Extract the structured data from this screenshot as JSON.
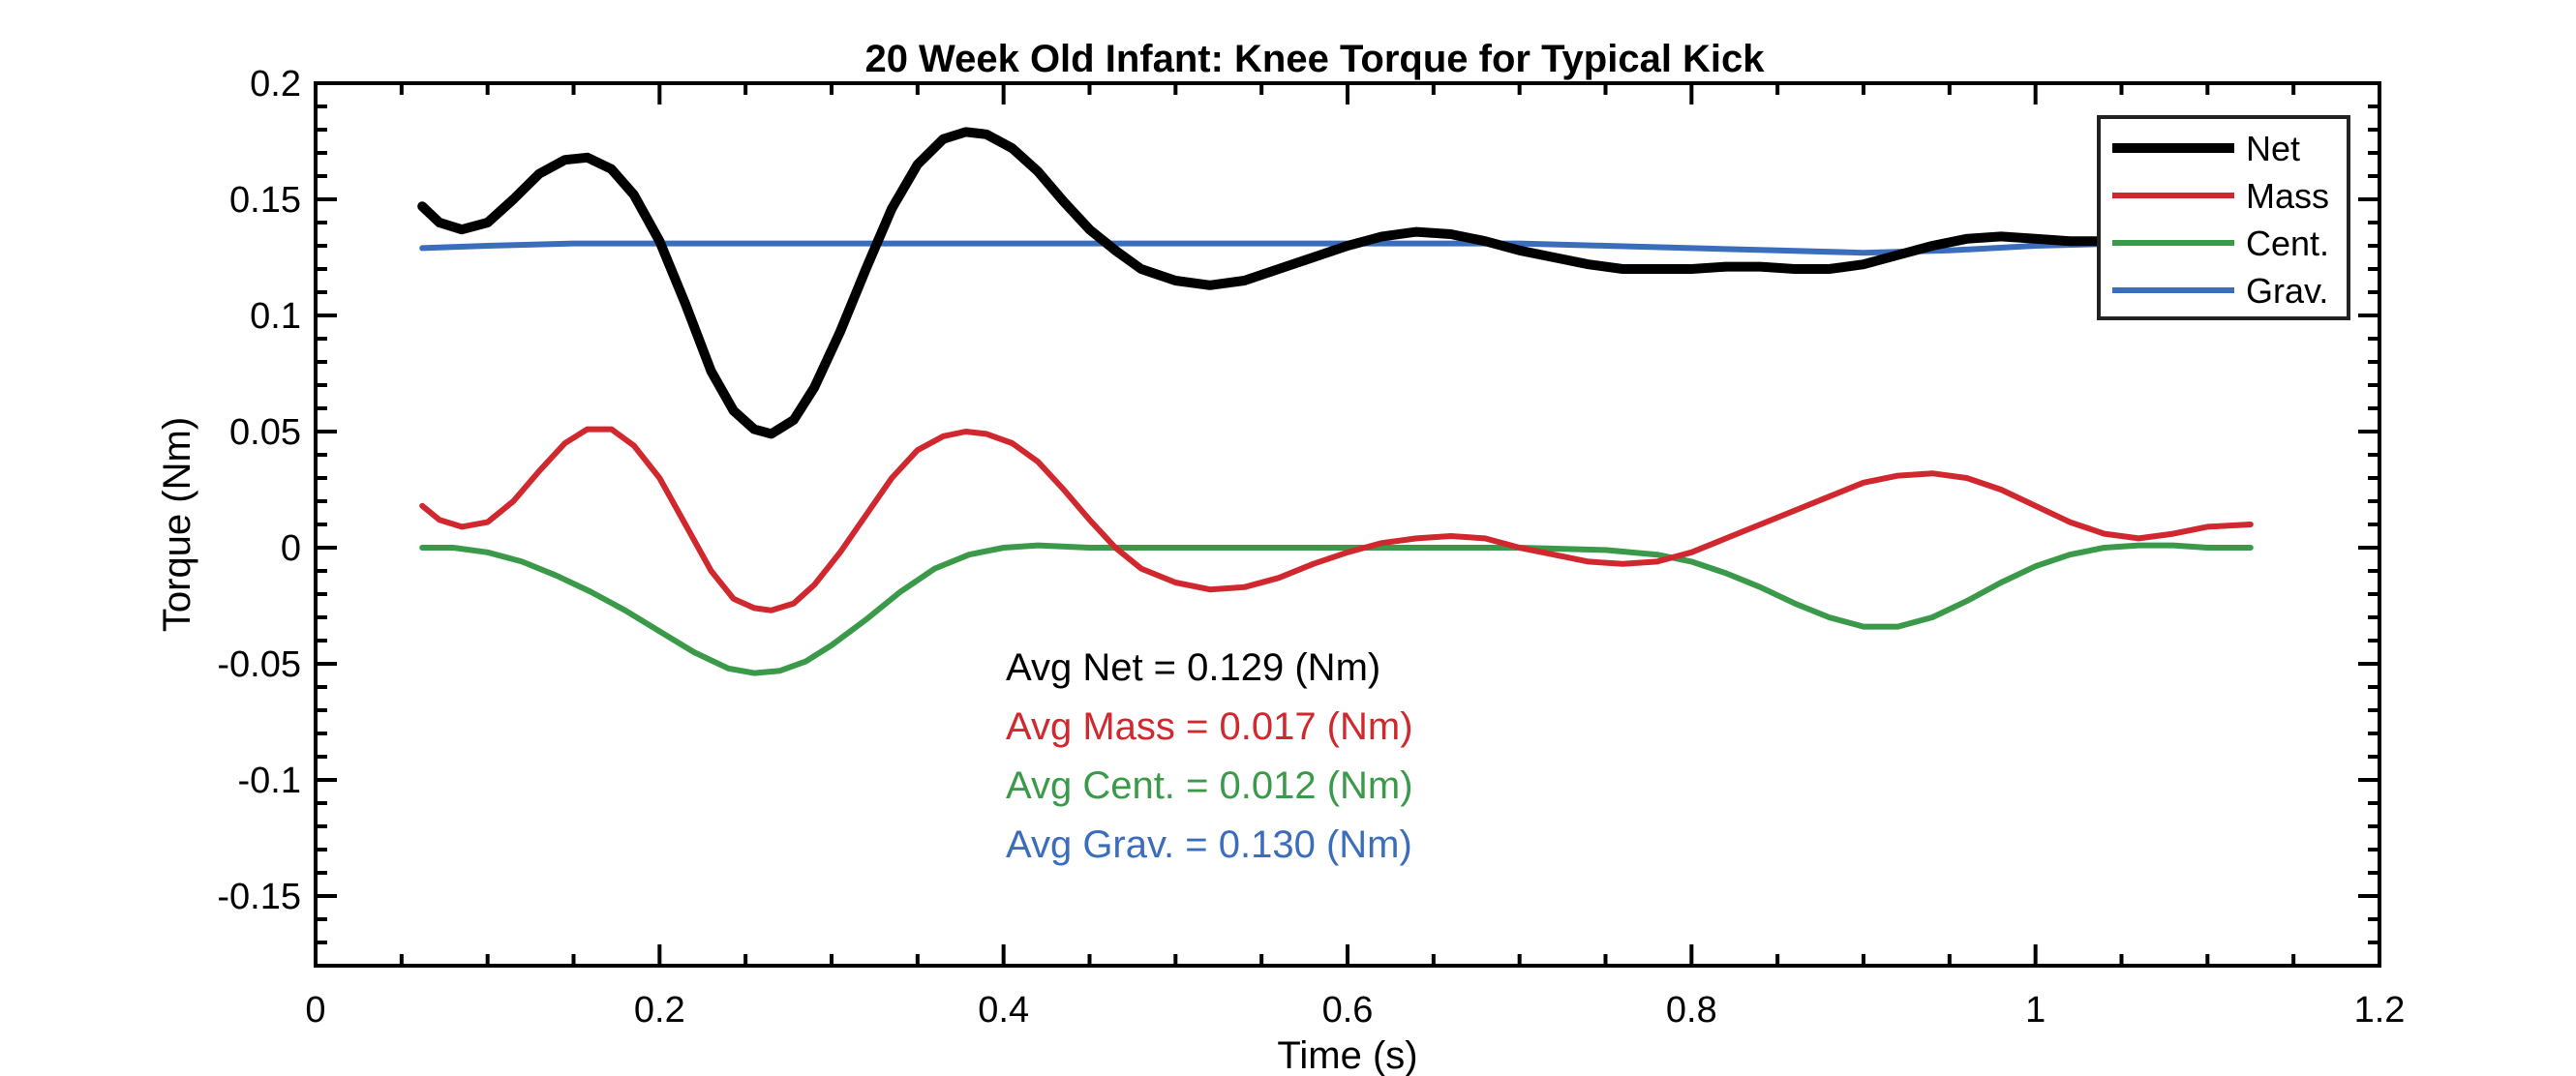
{
  "chart_data": {
    "type": "line",
    "title": "20 Week Old Infant: Knee Torque for Typical Kick",
    "xlabel": "Time (s)",
    "ylabel": "Torque (Nm)",
    "xlim": [
      0,
      1.2
    ],
    "ylim": [
      -0.18,
      0.2
    ],
    "xticks": [
      "0",
      "0.2",
      "0.4",
      "0.6",
      "0.8",
      "1",
      "1.2"
    ],
    "xtick_values": [
      0,
      0.2,
      0.4,
      0.6,
      0.8,
      1.0,
      1.2
    ],
    "yticks": [
      "-0.15",
      "-0.1",
      "-0.05",
      "0",
      "0.05",
      "0.1",
      "0.15",
      "0.2"
    ],
    "ytick_values": [
      -0.15,
      -0.1,
      -0.05,
      0,
      0.05,
      0.1,
      0.15,
      0.2
    ],
    "grid": false,
    "legend_position": "top-right",
    "series": [
      {
        "name": "Net",
        "color": "#000000",
        "x": [
          0.062,
          0.072,
          0.085,
          0.1,
          0.115,
          0.13,
          0.145,
          0.158,
          0.172,
          0.185,
          0.2,
          0.215,
          0.23,
          0.243,
          0.255,
          0.265,
          0.278,
          0.29,
          0.305,
          0.32,
          0.335,
          0.35,
          0.365,
          0.378,
          0.39,
          0.405,
          0.42,
          0.435,
          0.45,
          0.465,
          0.48,
          0.5,
          0.52,
          0.54,
          0.56,
          0.58,
          0.6,
          0.62,
          0.64,
          0.66,
          0.68,
          0.7,
          0.72,
          0.74,
          0.76,
          0.78,
          0.8,
          0.82,
          0.84,
          0.86,
          0.88,
          0.9,
          0.92,
          0.94,
          0.96,
          0.98,
          1.0,
          1.02,
          1.04,
          1.06,
          1.08,
          1.1,
          1.125
        ],
        "y": [
          0.147,
          0.14,
          0.137,
          0.14,
          0.15,
          0.161,
          0.167,
          0.168,
          0.163,
          0.152,
          0.132,
          0.105,
          0.076,
          0.059,
          0.051,
          0.049,
          0.055,
          0.069,
          0.093,
          0.12,
          0.146,
          0.165,
          0.176,
          0.179,
          0.178,
          0.172,
          0.162,
          0.149,
          0.137,
          0.128,
          0.12,
          0.115,
          0.113,
          0.115,
          0.12,
          0.125,
          0.13,
          0.134,
          0.136,
          0.135,
          0.132,
          0.128,
          0.125,
          0.122,
          0.12,
          0.12,
          0.12,
          0.121,
          0.121,
          0.12,
          0.12,
          0.122,
          0.126,
          0.13,
          0.133,
          0.134,
          0.133,
          0.132,
          0.132,
          0.132,
          0.132,
          0.132,
          0.132
        ]
      },
      {
        "name": "Mass",
        "color": "#d0282e",
        "x": [
          0.062,
          0.072,
          0.085,
          0.1,
          0.115,
          0.13,
          0.145,
          0.158,
          0.172,
          0.185,
          0.2,
          0.215,
          0.23,
          0.243,
          0.255,
          0.265,
          0.278,
          0.29,
          0.305,
          0.32,
          0.335,
          0.35,
          0.365,
          0.378,
          0.39,
          0.405,
          0.42,
          0.435,
          0.45,
          0.465,
          0.48,
          0.5,
          0.52,
          0.54,
          0.56,
          0.58,
          0.6,
          0.62,
          0.64,
          0.66,
          0.68,
          0.7,
          0.72,
          0.74,
          0.76,
          0.78,
          0.8,
          0.82,
          0.84,
          0.86,
          0.88,
          0.9,
          0.92,
          0.94,
          0.96,
          0.98,
          1.0,
          1.02,
          1.04,
          1.06,
          1.08,
          1.1,
          1.125
        ],
        "y": [
          0.018,
          0.012,
          0.009,
          0.011,
          0.02,
          0.033,
          0.045,
          0.051,
          0.051,
          0.044,
          0.03,
          0.01,
          -0.01,
          -0.022,
          -0.026,
          -0.027,
          -0.024,
          -0.016,
          -0.002,
          0.014,
          0.03,
          0.042,
          0.048,
          0.05,
          0.049,
          0.045,
          0.037,
          0.025,
          0.012,
          0.0,
          -0.009,
          -0.015,
          -0.018,
          -0.017,
          -0.013,
          -0.007,
          -0.002,
          0.002,
          0.004,
          0.005,
          0.004,
          0.0,
          -0.003,
          -0.006,
          -0.007,
          -0.006,
          -0.002,
          0.004,
          0.01,
          0.016,
          0.022,
          0.028,
          0.031,
          0.032,
          0.03,
          0.025,
          0.018,
          0.011,
          0.006,
          0.004,
          0.006,
          0.009,
          0.01
        ]
      },
      {
        "name": "Cent.",
        "color": "#3b9a4a",
        "x": [
          0.062,
          0.08,
          0.1,
          0.12,
          0.14,
          0.16,
          0.18,
          0.2,
          0.22,
          0.24,
          0.255,
          0.27,
          0.285,
          0.3,
          0.32,
          0.34,
          0.36,
          0.38,
          0.4,
          0.42,
          0.45,
          0.5,
          0.55,
          0.6,
          0.65,
          0.7,
          0.75,
          0.78,
          0.8,
          0.82,
          0.84,
          0.86,
          0.88,
          0.9,
          0.92,
          0.94,
          0.96,
          0.98,
          1.0,
          1.02,
          1.04,
          1.06,
          1.08,
          1.1,
          1.125
        ],
        "y": [
          0.0,
          0.0,
          -0.002,
          -0.006,
          -0.012,
          -0.019,
          -0.027,
          -0.036,
          -0.045,
          -0.052,
          -0.054,
          -0.053,
          -0.049,
          -0.042,
          -0.031,
          -0.019,
          -0.009,
          -0.003,
          0.0,
          0.001,
          0.0,
          0.0,
          0.0,
          0.0,
          0.0,
          0.0,
          -0.001,
          -0.003,
          -0.006,
          -0.011,
          -0.017,
          -0.024,
          -0.03,
          -0.034,
          -0.034,
          -0.03,
          -0.023,
          -0.015,
          -0.008,
          -0.003,
          0.0,
          0.001,
          0.001,
          0.0,
          0.0
        ]
      },
      {
        "name": "Grav.",
        "color": "#3b6dbd",
        "x": [
          0.062,
          0.1,
          0.15,
          0.2,
          0.25,
          0.3,
          0.35,
          0.4,
          0.45,
          0.5,
          0.55,
          0.6,
          0.65,
          0.7,
          0.75,
          0.8,
          0.85,
          0.9,
          0.95,
          1.0,
          1.05,
          1.1,
          1.125
        ],
        "y": [
          0.129,
          0.13,
          0.131,
          0.131,
          0.131,
          0.131,
          0.131,
          0.131,
          0.131,
          0.131,
          0.131,
          0.131,
          0.131,
          0.131,
          0.13,
          0.129,
          0.128,
          0.127,
          0.128,
          0.13,
          0.131,
          0.131,
          0.131
        ]
      }
    ],
    "annotations": [
      {
        "text": "Avg Net = 0.129 (Nm)",
        "color": "#000000"
      },
      {
        "text": "Avg Mass = 0.017 (Nm)",
        "color": "#d0282e"
      },
      {
        "text": "Avg Cent. = 0.012 (Nm)",
        "color": "#3b9a4a"
      },
      {
        "text": "Avg Grav. = 0.130 (Nm)",
        "color": "#3b6dbd"
      }
    ]
  }
}
